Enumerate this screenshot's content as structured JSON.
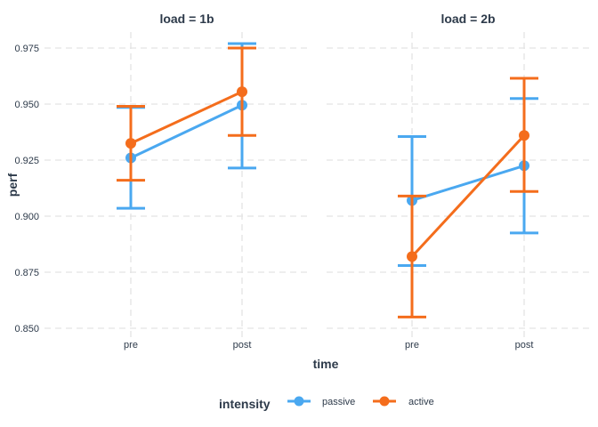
{
  "chart_data": {
    "type": "line",
    "x_label": "time",
    "y_label": "perf",
    "x_categories": [
      "pre",
      "post"
    ],
    "y_ticks": [
      "0.850",
      "0.875",
      "0.900",
      "0.925",
      "0.950",
      "0.975"
    ],
    "ylim": [
      0.85,
      0.975
    ],
    "grid": true,
    "legend": {
      "title": "intensity",
      "position": "bottom",
      "entries": [
        {
          "label": "passive",
          "color": "#4aa8f0"
        },
        {
          "label": "active",
          "color": "#f46d1c"
        }
      ]
    },
    "panels": [
      {
        "title": "load = 1b",
        "series": [
          {
            "name": "passive",
            "color": "#4aa8f0",
            "mean": [
              0.926,
              0.9495
            ],
            "lower": [
              0.9035,
              0.9215
            ],
            "upper": [
              0.9485,
              0.977
            ]
          },
          {
            "name": "active",
            "color": "#f46d1c",
            "mean": [
              0.9325,
              0.9555
            ],
            "lower": [
              0.916,
              0.936
            ],
            "upper": [
              0.949,
              0.975
            ]
          }
        ]
      },
      {
        "title": "load = 2b",
        "series": [
          {
            "name": "passive",
            "color": "#4aa8f0",
            "mean": [
              0.907,
              0.9225
            ],
            "lower": [
              0.878,
              0.8925
            ],
            "upper": [
              0.9355,
              0.9525
            ]
          },
          {
            "name": "active",
            "color": "#f46d1c",
            "mean": [
              0.882,
              0.936
            ],
            "lower": [
              0.855,
              0.911
            ],
            "upper": [
              0.909,
              0.9615
            ]
          }
        ]
      }
    ]
  }
}
